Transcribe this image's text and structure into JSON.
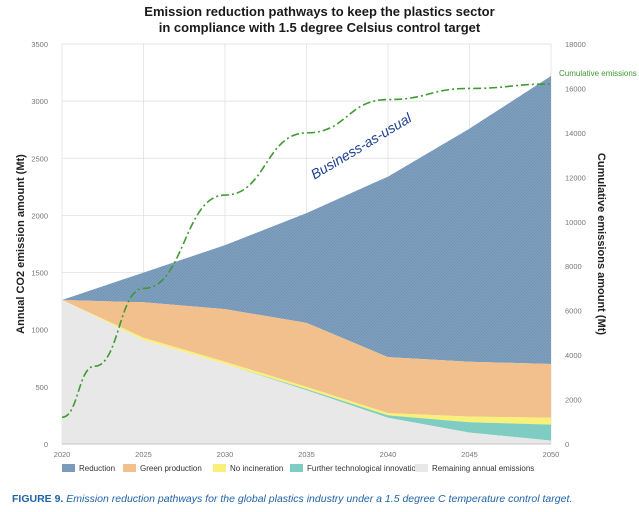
{
  "title_line1": "Emission reduction pathways to keep the plastics sector",
  "title_line2": "in compliance with 1.5 degree Celsius control target",
  "caption_label": "FIGURE 9.",
  "caption_text": "Emission reduction pathways for the global plastics industry under a 1.5 degree C temperature control target.",
  "chart_data": {
    "type": "area",
    "x": [
      2020,
      2025,
      2030,
      2035,
      2040,
      2045,
      2050
    ],
    "xlim": [
      2020,
      2050
    ],
    "ylabel": "Annual CO2 emission amount (Mt)",
    "ylim": [
      0,
      3500
    ],
    "y_ticks": [
      0,
      500,
      1000,
      1500,
      2000,
      2500,
      3000,
      3500
    ],
    "y2label": "Cumulative emissions amount (Mt)",
    "y2lim": [
      0,
      18000
    ],
    "y2_ticks": [
      0,
      2000,
      4000,
      6000,
      8000,
      10000,
      12000,
      14000,
      16000,
      18000
    ],
    "x_ticks": [
      2020,
      2025,
      2030,
      2035,
      2040,
      2045,
      2050
    ],
    "series": [
      {
        "name": "Reduction",
        "color": "#7f9fbf",
        "boundary": [
          1260,
          1500,
          1740,
          2020,
          2340,
          2760,
          3220
        ]
      },
      {
        "name": "Green production",
        "color": "#f2c08c",
        "boundary": [
          1260,
          1240,
          1180,
          1060,
          760,
          720,
          700
        ]
      },
      {
        "name": "No incineration",
        "color": "#f9f07a",
        "boundary": [
          1260,
          930,
          720,
          500,
          270,
          240,
          230
        ]
      },
      {
        "name": "Further technological innovation",
        "color": "#7fcdc2",
        "boundary": [
          1260,
          910,
          700,
          480,
          250,
          190,
          170
        ]
      },
      {
        "name": "Remaining annual emissions",
        "color": "#e8e8e8",
        "boundary": [
          1260,
          910,
          700,
          470,
          230,
          100,
          30
        ]
      }
    ],
    "baseline_label": "Business-as-usual",
    "cumulative": {
      "name": "Cumulative emissions",
      "color": "#3f9a32",
      "x": [
        2020,
        2022,
        2025,
        2030,
        2035,
        2040,
        2045,
        2050
      ],
      "values": [
        1200,
        3500,
        7000,
        11200,
        14000,
        15500,
        16000,
        16200
      ]
    }
  }
}
